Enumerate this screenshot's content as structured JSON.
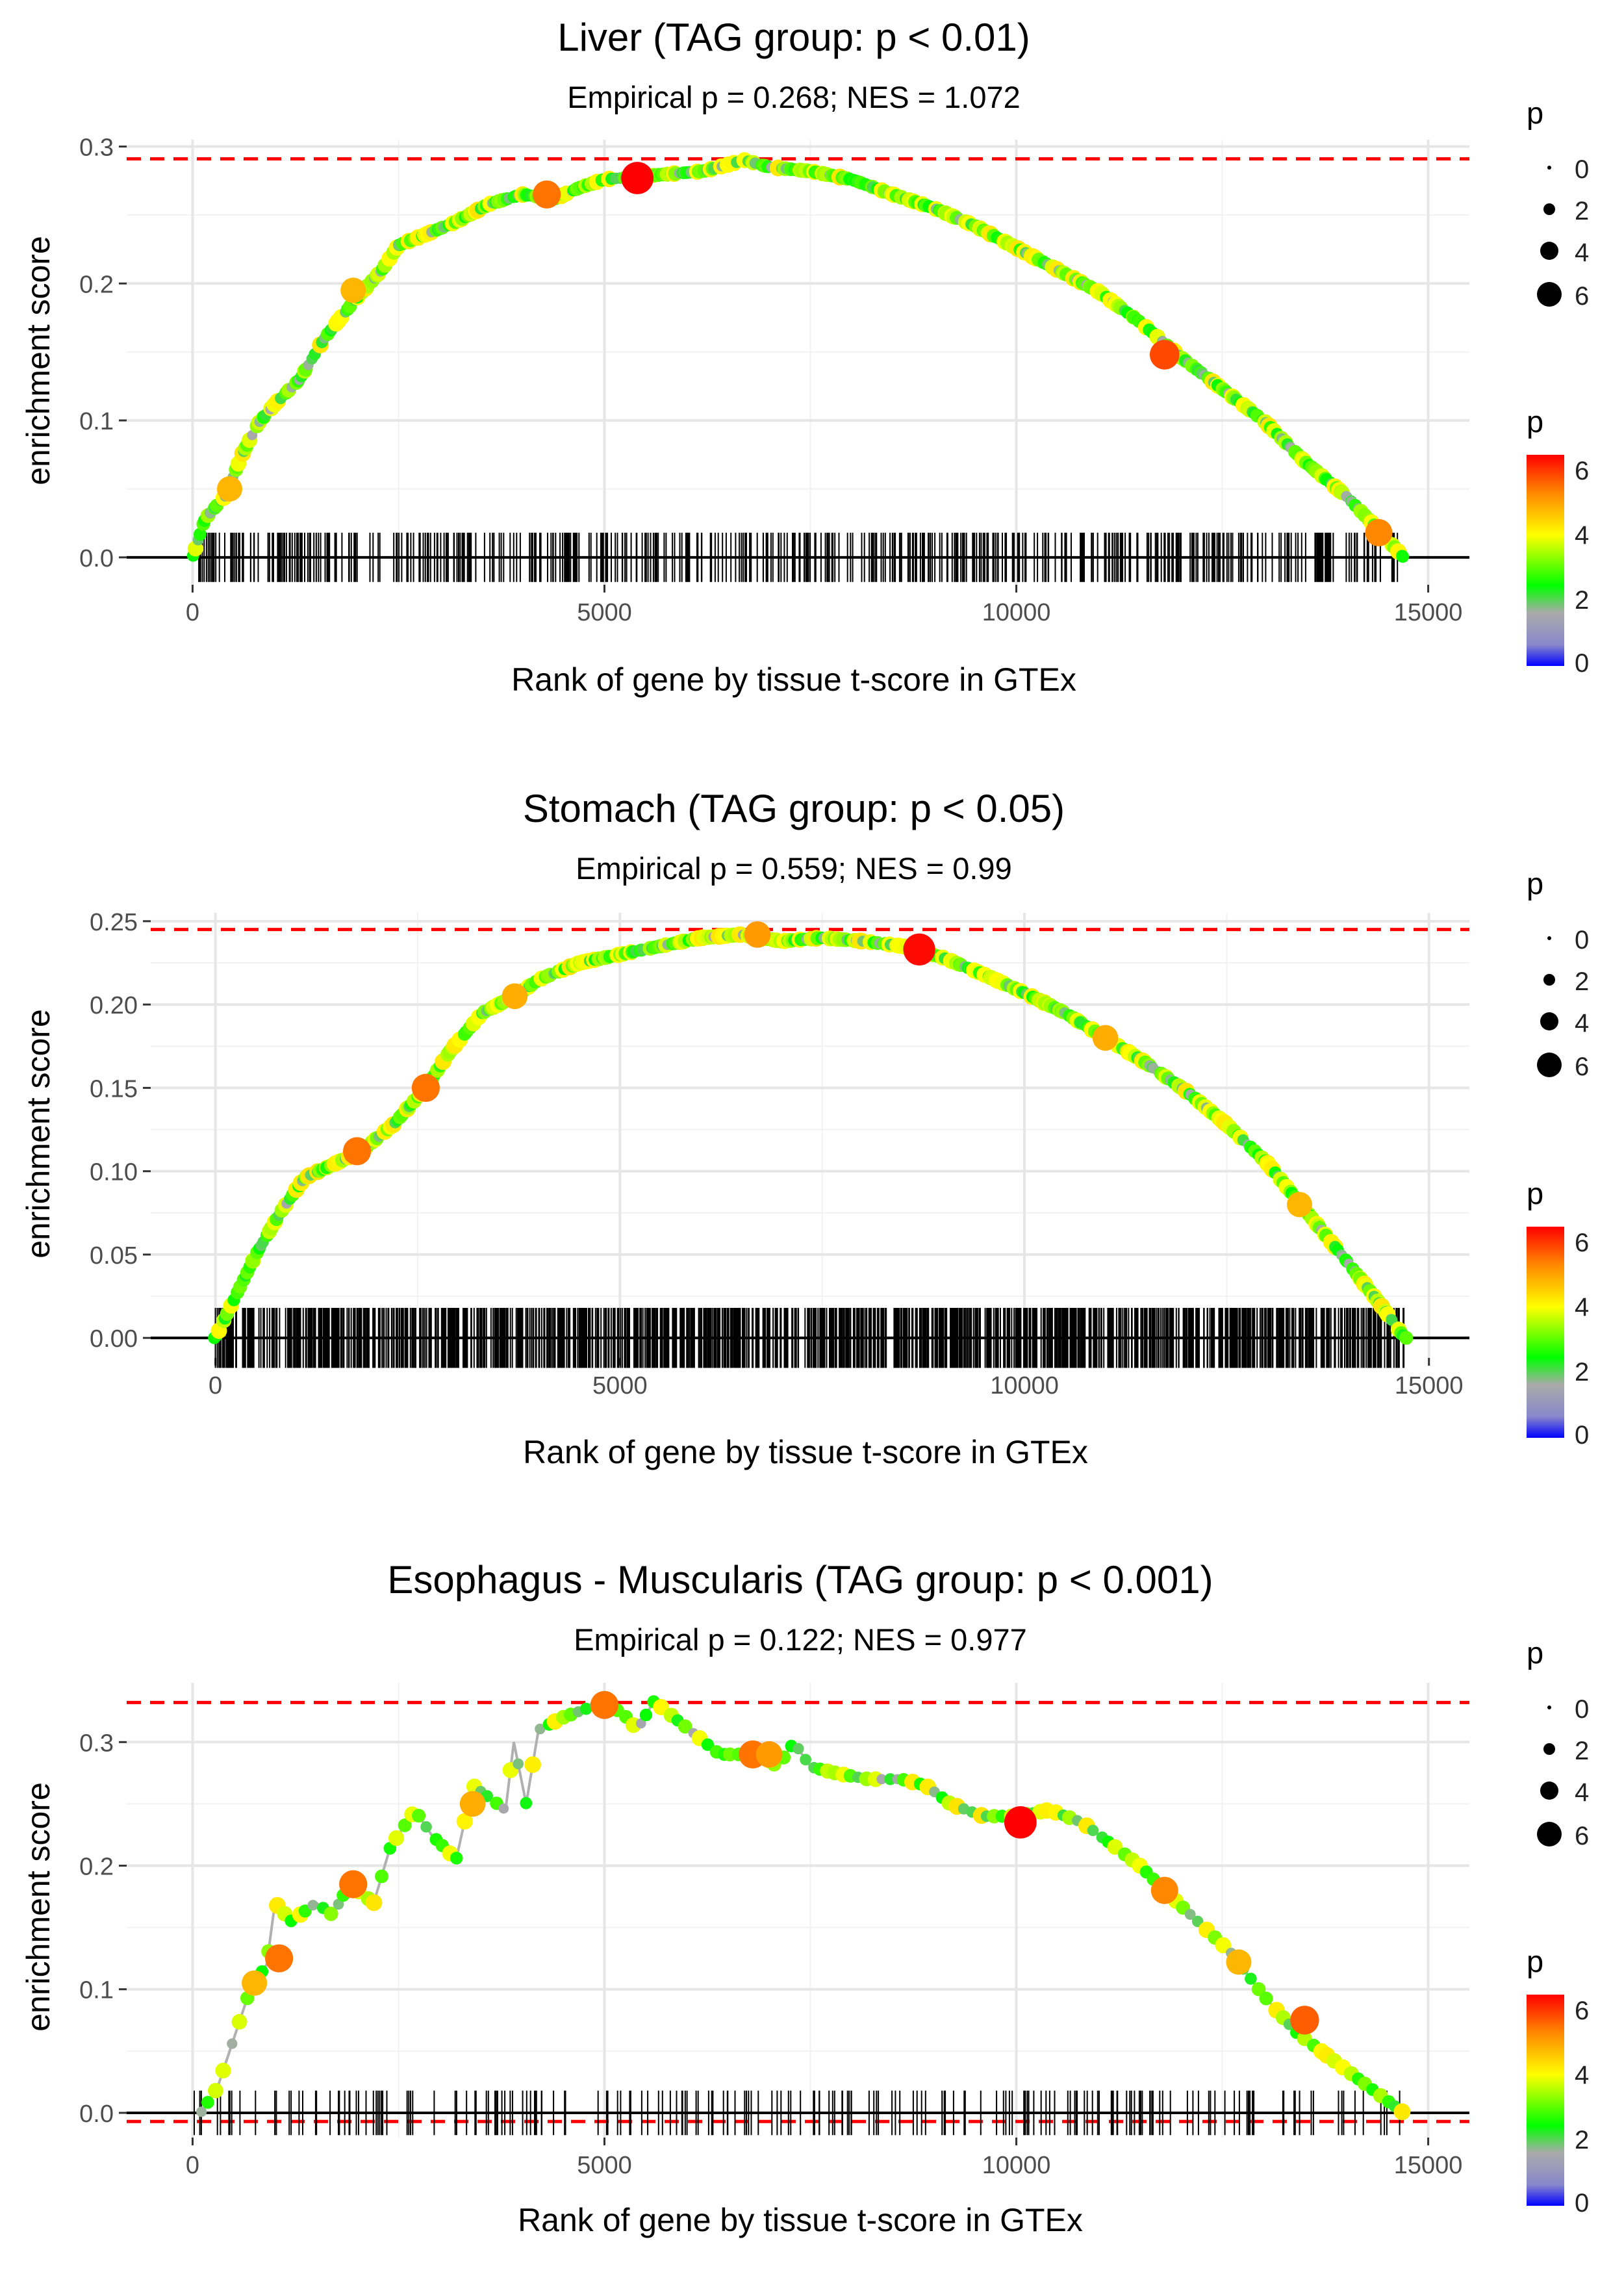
{
  "chart_data": [
    {
      "type": "line",
      "title": "Liver (TAG group: p < 0.01)",
      "subtitle": "Empirical p = 0.268; NES = 1.072",
      "xlabel": "Rank of gene by tissue t-score in GTEx",
      "ylabel": "enrichment score",
      "xlim": [
        -800,
        15500
      ],
      "ylim": [
        -0.02,
        0.305
      ],
      "x_ticks": [
        0,
        5000,
        10000,
        15000
      ],
      "x_tick_labels": [
        "0",
        "5000",
        "10000",
        "15000"
      ],
      "y_ticks": [
        0.0,
        0.1,
        0.2,
        0.3
      ],
      "y_tick_labels": [
        "0.0",
        "0.1",
        "0.2",
        "0.3"
      ],
      "max_es_line": 0.291,
      "min_es_line": null,
      "x_max": 14700,
      "curve": [
        [
          0,
          0.0
        ],
        [
          150,
          0.028
        ],
        [
          400,
          0.045
        ],
        [
          600,
          0.075
        ],
        [
          800,
          0.098
        ],
        [
          1000,
          0.112
        ],
        [
          1300,
          0.13
        ],
        [
          1600,
          0.16
        ],
        [
          2000,
          0.19
        ],
        [
          2300,
          0.21
        ],
        [
          2500,
          0.228
        ],
        [
          2800,
          0.235
        ],
        [
          3200,
          0.245
        ],
        [
          3600,
          0.258
        ],
        [
          4000,
          0.265
        ],
        [
          4400,
          0.262
        ],
        [
          4700,
          0.27
        ],
        [
          5000,
          0.276
        ],
        [
          5400,
          0.278
        ],
        [
          5800,
          0.28
        ],
        [
          6200,
          0.282
        ],
        [
          6700,
          0.29
        ],
        [
          7000,
          0.285
        ],
        [
          7500,
          0.282
        ],
        [
          8000,
          0.276
        ],
        [
          8500,
          0.265
        ],
        [
          9000,
          0.255
        ],
        [
          9500,
          0.242
        ],
        [
          10000,
          0.226
        ],
        [
          10500,
          0.21
        ],
        [
          11000,
          0.194
        ],
        [
          11500,
          0.172
        ],
        [
          12000,
          0.146
        ],
        [
          12500,
          0.123
        ],
        [
          13000,
          0.1
        ],
        [
          13500,
          0.07
        ],
        [
          14000,
          0.045
        ],
        [
          14400,
          0.02
        ],
        [
          14700,
          0.0
        ]
      ],
      "highlights": [
        [
          450,
          0.05,
          4.5
        ],
        [
          1950,
          0.195,
          4.5
        ],
        [
          4300,
          0.265,
          5.2
        ],
        [
          5400,
          0.277,
          6.3
        ],
        [
          11800,
          0.148,
          5.6
        ],
        [
          14400,
          0.018,
          5.0
        ]
      ],
      "rug_count": 520,
      "rug_seed": 11,
      "legend_size_title": "p",
      "legend_size_labels": [
        "0",
        "2",
        "4",
        "6"
      ],
      "legend_color_title": "p",
      "legend_color_labels": [
        "6",
        "4",
        "2",
        "0"
      ]
    },
    {
      "type": "line",
      "title": "Stomach (TAG group: p < 0.05)",
      "subtitle": "Empirical p = 0.559; NES = 0.99",
      "xlabel": "Rank of gene by tissue t-score in GTEx",
      "ylabel": "enrichment score",
      "xlim": [
        -800,
        15500
      ],
      "ylim": [
        -0.012,
        0.255
      ],
      "x_ticks": [
        0,
        5000,
        10000,
        15000
      ],
      "x_tick_labels": [
        "0",
        "5000",
        "10000",
        "15000"
      ],
      "y_ticks": [
        0.0,
        0.05,
        0.1,
        0.15,
        0.2,
        0.25
      ],
      "y_tick_labels": [
        "0.00",
        "0.05",
        "0.10",
        "0.15",
        "0.20",
        "0.25"
      ],
      "max_es_line": 0.245,
      "min_es_line": null,
      "x_max": 14700,
      "curve": [
        [
          0,
          0.0
        ],
        [
          200,
          0.02
        ],
        [
          500,
          0.05
        ],
        [
          800,
          0.075
        ],
        [
          1100,
          0.096
        ],
        [
          1500,
          0.105
        ],
        [
          1800,
          0.112
        ],
        [
          2200,
          0.128
        ],
        [
          2600,
          0.15
        ],
        [
          2900,
          0.172
        ],
        [
          3300,
          0.195
        ],
        [
          3700,
          0.205
        ],
        [
          4000,
          0.215
        ],
        [
          4500,
          0.225
        ],
        [
          5000,
          0.23
        ],
        [
          5500,
          0.235
        ],
        [
          6000,
          0.24
        ],
        [
          6500,
          0.242
        ],
        [
          7000,
          0.238
        ],
        [
          7500,
          0.24
        ],
        [
          8000,
          0.238
        ],
        [
          8500,
          0.235
        ],
        [
          9000,
          0.228
        ],
        [
          9500,
          0.218
        ],
        [
          10000,
          0.207
        ],
        [
          10500,
          0.195
        ],
        [
          11000,
          0.18
        ],
        [
          11500,
          0.165
        ],
        [
          12000,
          0.148
        ],
        [
          12500,
          0.128
        ],
        [
          13000,
          0.105
        ],
        [
          13500,
          0.075
        ],
        [
          14000,
          0.045
        ],
        [
          14400,
          0.02
        ],
        [
          14700,
          0.0
        ]
      ],
      "highlights": [
        [
          1750,
          0.112,
          5.2
        ],
        [
          2600,
          0.15,
          5.2
        ],
        [
          3700,
          0.205,
          4.6
        ],
        [
          6700,
          0.242,
          4.8
        ],
        [
          8700,
          0.233,
          6.2
        ],
        [
          11000,
          0.18,
          4.6
        ],
        [
          13400,
          0.08,
          4.5
        ]
      ],
      "rug_count": 1200,
      "rug_seed": 23,
      "legend_size_title": "p",
      "legend_size_labels": [
        "0",
        "2",
        "4",
        "6"
      ],
      "legend_color_title": "p",
      "legend_color_labels": [
        "6",
        "4",
        "2",
        "0"
      ]
    },
    {
      "type": "line",
      "title": "Esophagus - Muscularis (TAG group: p < 0.001)",
      "subtitle": "Empirical p = 0.122; NES = 0.977",
      "xlabel": "Rank of gene by tissue t-score in GTEx",
      "ylabel": "enrichment score",
      "xlim": [
        -800,
        15500
      ],
      "ylim": [
        -0.02,
        0.348
      ],
      "x_ticks": [
        0,
        5000,
        10000,
        15000
      ],
      "x_tick_labels": [
        "0",
        "5000",
        "10000",
        "15000"
      ],
      "y_ticks": [
        0.0,
        0.1,
        0.2,
        0.3
      ],
      "y_tick_labels": [
        "0.0",
        "0.1",
        "0.2",
        "0.3"
      ],
      "max_es_line": 0.332,
      "min_es_line": -0.007,
      "x_max": 14700,
      "curve": [
        [
          100,
          0.0
        ],
        [
          300,
          0.02
        ],
        [
          500,
          0.06
        ],
        [
          700,
          0.1
        ],
        [
          900,
          0.12
        ],
        [
          1000,
          0.17
        ],
        [
          1200,
          0.155
        ],
        [
          1500,
          0.17
        ],
        [
          1700,
          0.16
        ],
        [
          1900,
          0.185
        ],
        [
          2200,
          0.17
        ],
        [
          2400,
          0.215
        ],
        [
          2700,
          0.245
        ],
        [
          2900,
          0.225
        ],
        [
          3200,
          0.205
        ],
        [
          3400,
          0.265
        ],
        [
          3600,
          0.255
        ],
        [
          3800,
          0.245
        ],
        [
          3900,
          0.3
        ],
        [
          4050,
          0.25
        ],
        [
          4200,
          0.31
        ],
        [
          4500,
          0.32
        ],
        [
          4900,
          0.33
        ],
        [
          5200,
          0.325
        ],
        [
          5400,
          0.31
        ],
        [
          5600,
          0.333
        ],
        [
          6400,
          0.29
        ],
        [
          6700,
          0.29
        ],
        [
          6900,
          0.29
        ],
        [
          7100,
          0.28
        ],
        [
          7300,
          0.3
        ],
        [
          7500,
          0.28
        ],
        [
          7800,
          0.275
        ],
        [
          8200,
          0.27
        ],
        [
          8600,
          0.27
        ],
        [
          8900,
          0.265
        ],
        [
          9200,
          0.25
        ],
        [
          9600,
          0.24
        ],
        [
          10000,
          0.24
        ],
        [
          10400,
          0.245
        ],
        [
          10800,
          0.235
        ],
        [
          11200,
          0.215
        ],
        [
          11500,
          0.2
        ],
        [
          11800,
          0.18
        ],
        [
          12200,
          0.155
        ],
        [
          12600,
          0.13
        ],
        [
          13000,
          0.095
        ],
        [
          13400,
          0.065
        ],
        [
          13800,
          0.045
        ],
        [
          14200,
          0.025
        ],
        [
          14700,
          0.0
        ]
      ],
      "highlights": [
        [
          750,
          0.105,
          4.5
        ],
        [
          1050,
          0.125,
          5.2
        ],
        [
          1950,
          0.185,
          5.2
        ],
        [
          3400,
          0.25,
          4.6
        ],
        [
          5000,
          0.33,
          5.2
        ],
        [
          6800,
          0.29,
          5.2
        ],
        [
          7000,
          0.29,
          4.8
        ],
        [
          10050,
          0.235,
          6.3
        ],
        [
          11800,
          0.18,
          5.0
        ],
        [
          12700,
          0.122,
          4.5
        ],
        [
          13500,
          0.075,
          5.4
        ]
      ],
      "rug_count": 210,
      "rug_seed": 37,
      "legend_size_title": "p",
      "legend_size_labels": [
        "0",
        "2",
        "4",
        "6"
      ],
      "legend_color_title": "p",
      "legend_color_labels": [
        "6",
        "4",
        "2",
        "0"
      ]
    }
  ]
}
